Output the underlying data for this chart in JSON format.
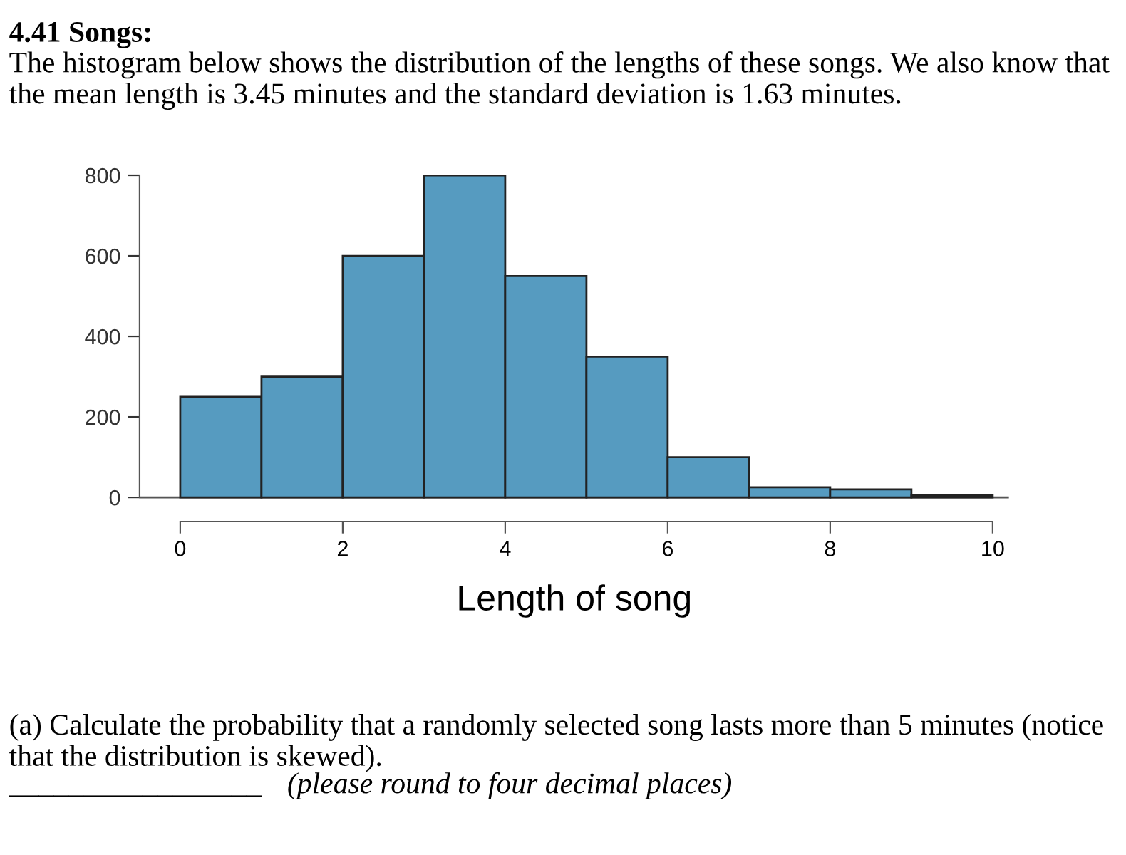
{
  "chart_data": {
    "type": "histogram",
    "title": "4.41 Songs:",
    "subtitle": "The histogram below shows the distribution of the lengths of these songs. We also know that the mean length is 3.45 minutes and the standard deviation is 1.63 minutes.",
    "xlabel": "Length of song",
    "bins": [
      0,
      1,
      2,
      3,
      4,
      5,
      6,
      7,
      8,
      9,
      10
    ],
    "values": [
      250,
      300,
      600,
      800,
      550,
      350,
      100,
      25,
      20,
      5
    ],
    "color": "#569bc0",
    "xlim": [
      -0.5,
      10.2
    ],
    "xticks": [
      0,
      2,
      4,
      6,
      8,
      10
    ],
    "ylim": [
      -60,
      800
    ],
    "yticks": [
      0,
      200,
      400,
      600,
      800
    ],
    "ref_lines": [
      {
        "axis": "y",
        "value": 0,
        "color": "#555555"
      }
    ],
    "grid": false,
    "annotations": [
      "(a) Calculate the probability that a randomly selected song lasts more than 5 minutes (notice that the distribution is skewed).",
      "_________________",
      "(please round to four decimal places)"
    ]
  }
}
